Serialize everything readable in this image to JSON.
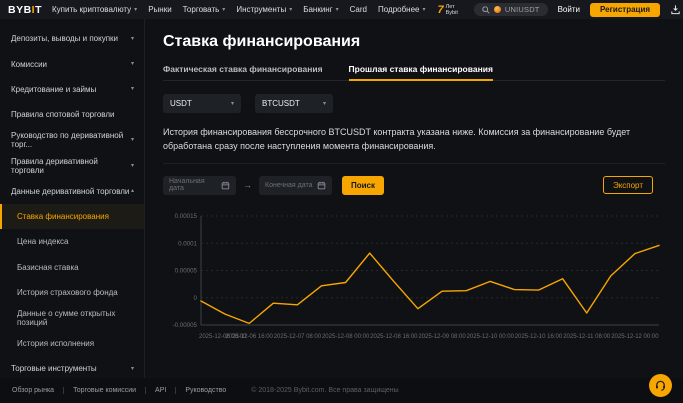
{
  "brand": {
    "logo_prefix": "BYB",
    "logo_accent": "I",
    "logo_suffix": "T",
    "accent_color": "#f7a600"
  },
  "navbar": {
    "items": [
      {
        "label": "Купить криптовалюту",
        "chevron": true
      },
      {
        "label": "Рынки",
        "chevron": false
      },
      {
        "label": "Торговать",
        "chevron": true
      },
      {
        "label": "Инструменты",
        "chevron": true
      },
      {
        "label": "Банкинг",
        "chevron": true
      },
      {
        "label": "Card",
        "chevron": false
      },
      {
        "label": "Подробнее",
        "chevron": true
      }
    ],
    "promo": {
      "number": "7",
      "label": "Лет Bybit"
    },
    "search": {
      "value": "UNIUSDT"
    },
    "login_label": "Войти",
    "signup_label": "Регистрация"
  },
  "sidebar": {
    "items": [
      {
        "label": "Депозиты, выводы и покупки",
        "chevron": "down"
      },
      {
        "label": "Комиссии",
        "chevron": "down"
      },
      {
        "label": "Кредитование и займы",
        "chevron": "down"
      },
      {
        "label": "Правила спотовой торговли",
        "chevron": "none"
      },
      {
        "label": "Руководство по деривативной торг...",
        "chevron": "down"
      },
      {
        "label": "Правила деривативной торговли",
        "chevron": "down"
      },
      {
        "label": "Данные деривативной торговли",
        "chevron": "up",
        "expanded": true
      }
    ],
    "subitems": [
      {
        "label": "Ставка финансирования",
        "active": true
      },
      {
        "label": "Цена индекса",
        "active": false
      },
      {
        "label": "Базисная ставка",
        "active": false
      },
      {
        "label": "История страхового фонда",
        "active": false
      },
      {
        "label": "Данные о сумме открытых позиций",
        "active": false
      },
      {
        "label": "История исполнения",
        "active": false
      }
    ],
    "bottom_item": {
      "label": "Торговые инструменты",
      "chevron": "down"
    }
  },
  "main": {
    "title": "Ставка финансирования",
    "tabs": [
      {
        "label": "Фактическая ставка финансирования",
        "active": false
      },
      {
        "label": "Прошлая ставка финансирования",
        "active": true
      }
    ],
    "filters": {
      "coin": "USDT",
      "contract": "BTCUSDT"
    },
    "description": "История финансирования бессрочного BTCUSDT контракта указана ниже. Комиссия за финансирование будет обработана сразу после наступления момента финансирования.",
    "date_from_placeholder": "Начальная дата",
    "date_to_placeholder": "Конечная дата",
    "search_button": "Поиск",
    "export_button": "Экспорт"
  },
  "chart_data": {
    "type": "line",
    "series_name": "Ставка финансирования",
    "line_color": "#f7a600",
    "grid": "dashed-horizontal",
    "legend": "none",
    "ylim": [
      -5e-05,
      0.00015
    ],
    "y_ticks": [
      -5e-05,
      0,
      5e-05,
      0.0001,
      0.00015
    ],
    "y_tick_labels": [
      "-0.00005",
      "0",
      "0.00005",
      "0.0001",
      "0.00015"
    ],
    "x": [
      "2025-12-06 00:00",
      "2025-12-06 08:00",
      "2025-12-06 16:00",
      "2025-12-07 00:00",
      "2025-12-07 08:00",
      "2025-12-07 16:00",
      "2025-12-08 00:00",
      "2025-12-08 08:00",
      "2025-12-08 16:00",
      "2025-12-09 00:00",
      "2025-12-09 08:00",
      "2025-12-09 16:00",
      "2025-12-10 00:00",
      "2025-12-10 08:00",
      "2025-12-10 16:00",
      "2025-12-11 00:00",
      "2025-12-11 08:00",
      "2025-12-11 16:00",
      "2025-12-12 00:00",
      "2025-12-12 08:00"
    ],
    "values": [
      -6e-06,
      -3e-05,
      -4.7e-05,
      -1e-05,
      -1.3e-05,
      2.2e-05,
      2.8e-05,
      8.2e-05,
      3e-05,
      -2e-05,
      1.2e-05,
      1.3e-05,
      3e-05,
      1.5e-05,
      1.4e-05,
      3.5e-05,
      -2.8e-05,
      4e-05,
      8.1e-05,
      9.6e-05
    ],
    "x_tick_labels": [
      "2025-12-06 00:00",
      "2025-12-06 16:00",
      "2025-12-07 08:00",
      "2025-12-08 00:00",
      "2025-12-08 16:00",
      "2025-12-09 08:00",
      "2025-12-10 00:00",
      "2025-12-10 16:00",
      "2025-12-11 08:00",
      "2025-12-12 00:00"
    ]
  },
  "footer": {
    "links": [
      "Обзор рынка",
      "Торговые комиссии",
      "API",
      "Руководство"
    ],
    "copyright": "© 2018-2025 Bybit.com. Все права защищены"
  }
}
